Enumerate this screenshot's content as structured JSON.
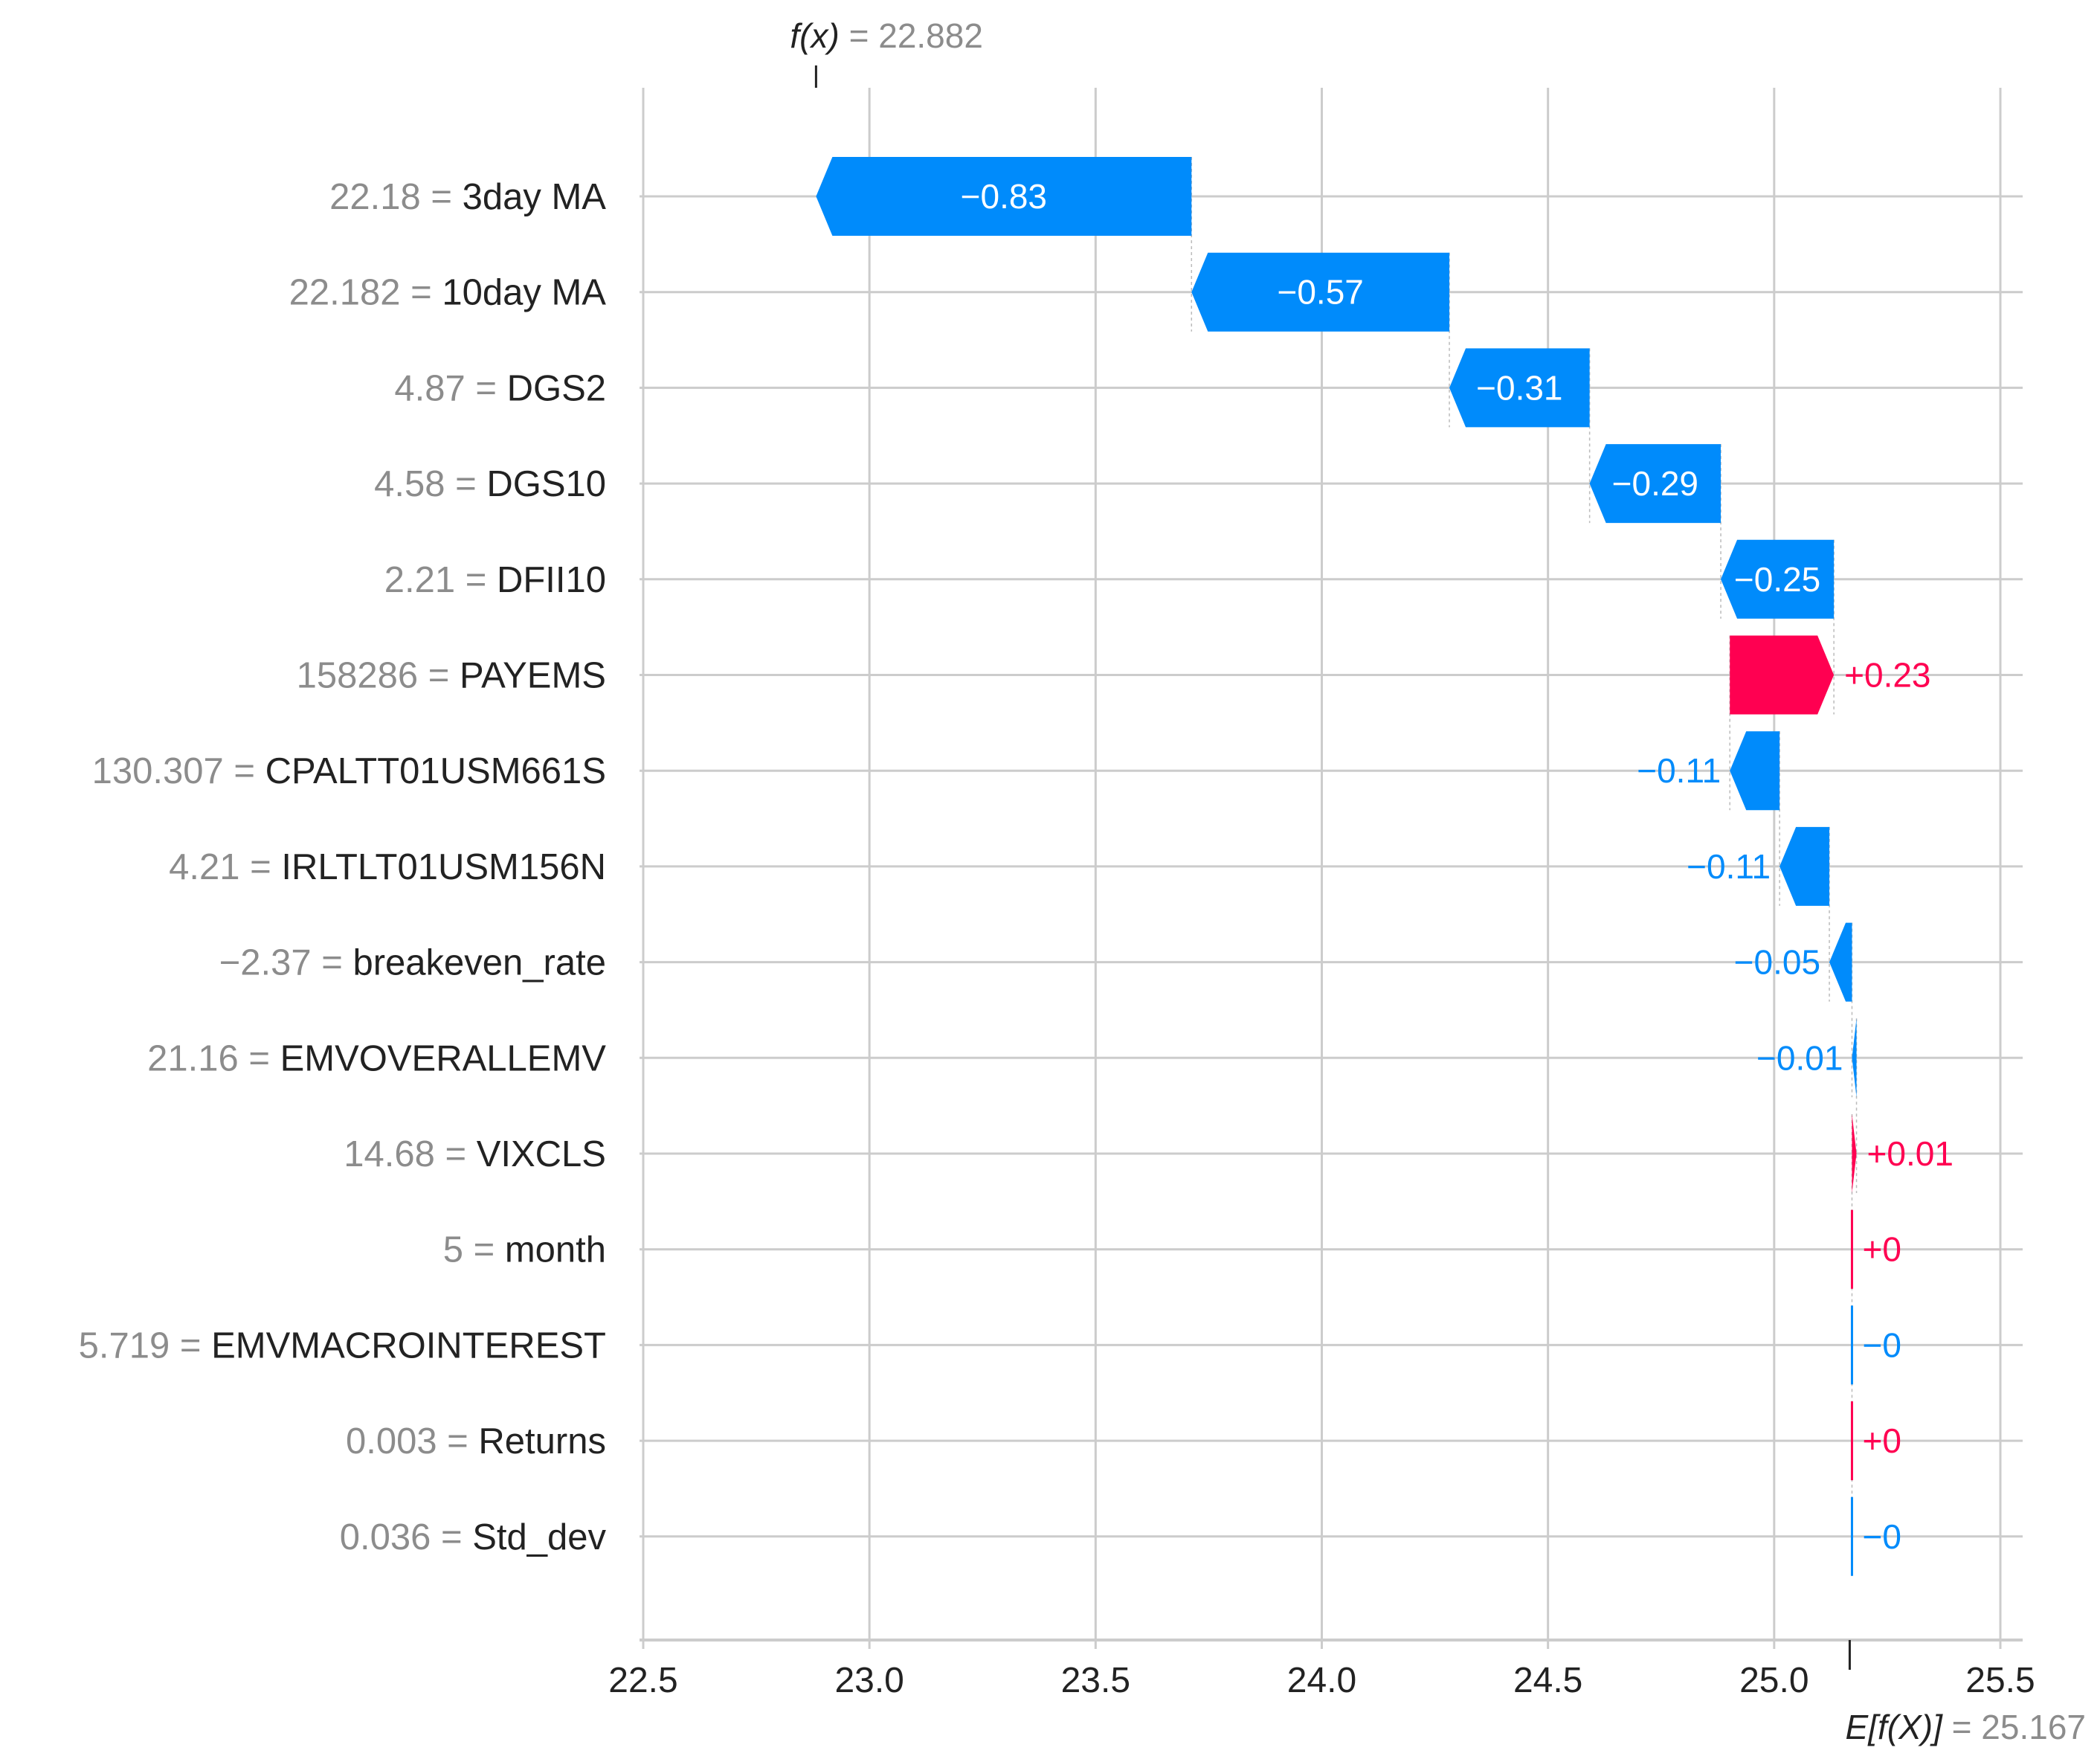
{
  "colors": {
    "negative": "#008bfb",
    "positive": "#ff0051",
    "grid": "#cccccc",
    "muted": "#8c8c8c",
    "text": "#222222"
  },
  "header": {
    "fx_label": "f(x)",
    "fx_value": "22.882"
  },
  "footer": {
    "efx_label": "E[f(X)]",
    "efx_value": "25.167"
  },
  "chart_data": {
    "type": "waterfall",
    "base_value": 25.167,
    "output_value": 22.882,
    "xlim": [
      22.5,
      25.5
    ],
    "x_ticks": [
      22.5,
      23.0,
      23.5,
      24.0,
      24.5,
      25.0,
      25.5
    ],
    "x_tick_labels": [
      "22.5",
      "23.0",
      "23.5",
      "24.0",
      "24.5",
      "25.0",
      "25.5"
    ],
    "grid": true,
    "features": [
      {
        "feature_value": "22.18",
        "name": "3day MA",
        "contribution": -0.83,
        "label": "−0.83"
      },
      {
        "feature_value": "22.182",
        "name": "10day MA",
        "contribution": -0.57,
        "label": "−0.57"
      },
      {
        "feature_value": "4.87",
        "name": "DGS2",
        "contribution": -0.31,
        "label": "−0.31"
      },
      {
        "feature_value": "4.58",
        "name": "DGS10",
        "contribution": -0.29,
        "label": "−0.29"
      },
      {
        "feature_value": "2.21",
        "name": "DFII10",
        "contribution": -0.25,
        "label": "−0.25"
      },
      {
        "feature_value": "158286",
        "name": "PAYEMS",
        "contribution": 0.23,
        "label": "+0.23"
      },
      {
        "feature_value": "130.307",
        "name": "CPALTT01USM661S",
        "contribution": -0.11,
        "label": "−0.11"
      },
      {
        "feature_value": "4.21",
        "name": "IRLTLT01USM156N",
        "contribution": -0.11,
        "label": "−0.11"
      },
      {
        "feature_value": "−2.37",
        "name": "breakeven_rate",
        "contribution": -0.05,
        "label": "−0.05"
      },
      {
        "feature_value": "21.16",
        "name": "EMVOVERALLEMV",
        "contribution": -0.01,
        "label": "−0.01"
      },
      {
        "feature_value": "14.68",
        "name": "VIXCLS",
        "contribution": 0.01,
        "label": "+0.01"
      },
      {
        "feature_value": "5",
        "name": "month",
        "contribution": 0.0,
        "label": "+0"
      },
      {
        "feature_value": "5.719",
        "name": "EMVMACROINTEREST",
        "contribution": 0.0,
        "label": "−0"
      },
      {
        "feature_value": "0.003",
        "name": "Returns",
        "contribution": 0.0,
        "label": "+0"
      },
      {
        "feature_value": "0.036",
        "name": "Std_dev",
        "contribution": 0.0,
        "label": "−0"
      }
    ]
  }
}
